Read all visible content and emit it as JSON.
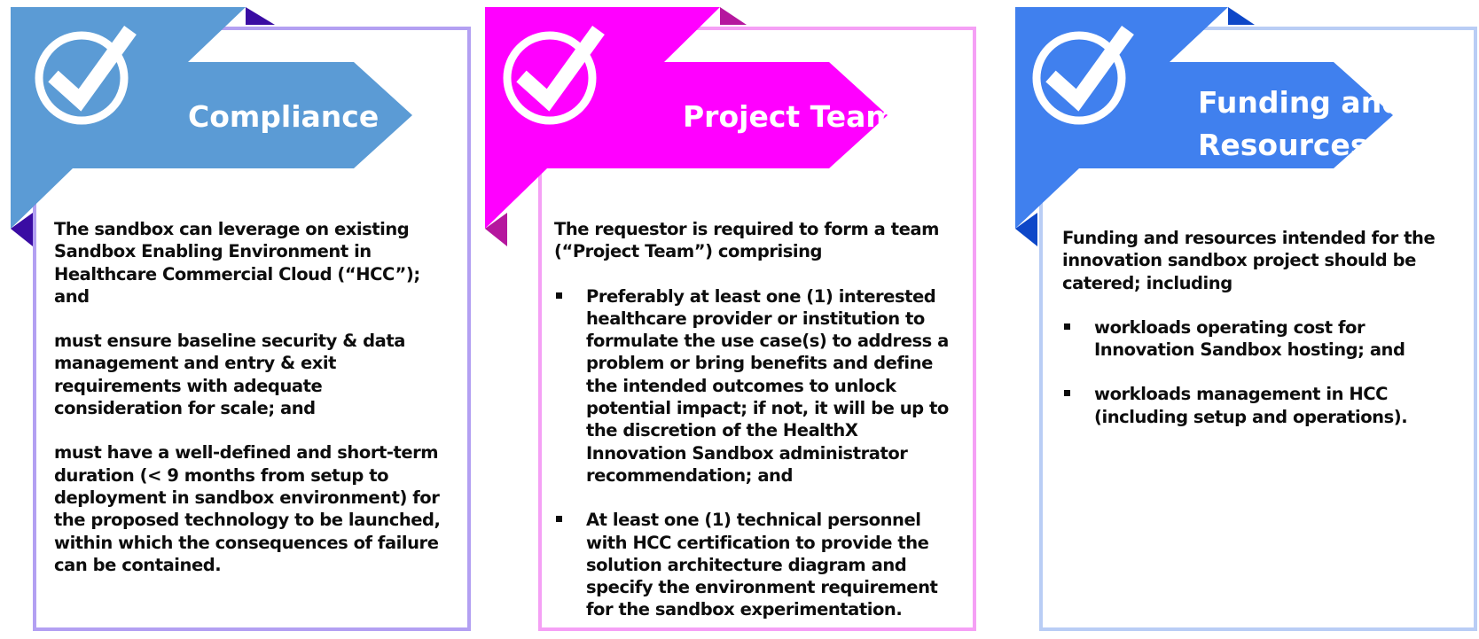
{
  "cards": [
    {
      "title": "Compliance",
      "colors": {
        "banner": "#5b9bd5",
        "fold": "#3a0ca3",
        "border": "#b3a0f2"
      },
      "icon": "checkmark-circle-icon",
      "paragraphs": [
        "The sandbox can leverage on existing Sandbox Enabling Environment in Healthcare Commercial Cloud (“HCC”); and",
        "must ensure baseline security & data management and entry & exit requirements with adequate consideration for scale; and",
        "must have a well-defined and short-term duration (< 9 months from setup to deployment in sandbox environment) for the proposed technology to be launched, within which the consequences of failure can be contained."
      ]
    },
    {
      "title": "Project Team",
      "colors": {
        "banner": "#ff00ff",
        "fold": "#b5179e",
        "border": "#f5a0f5"
      },
      "icon": "checkmark-circle-icon",
      "intro": "The requestor is required to form a team (“Project Team”) comprising",
      "bullets": [
        "Preferably at least one (1) interested healthcare provider or institution to formulate the use case(s) to address a problem or bring benefits and define the intended outcomes to unlock potential impact; if not, it will be up to the discretion of the HealthX Innovation Sandbox administrator recommendation; and",
        "At least one (1) technical personnel with HCC certification to provide the solution architecture diagram and specify the environment requirement for the sandbox experimentation."
      ]
    },
    {
      "title": "Funding and\nResources",
      "colors": {
        "banner": "#4080ee",
        "fold": "#0d47c8",
        "border": "#b9cdf5"
      },
      "icon": "checkmark-circle-icon",
      "intro": "Funding and resources intended for the innovation sandbox project should be catered; including",
      "bullets": [
        "workloads operating cost for Innovation Sandbox hosting; and",
        "workloads management in HCC (including setup and operations)."
      ]
    }
  ]
}
